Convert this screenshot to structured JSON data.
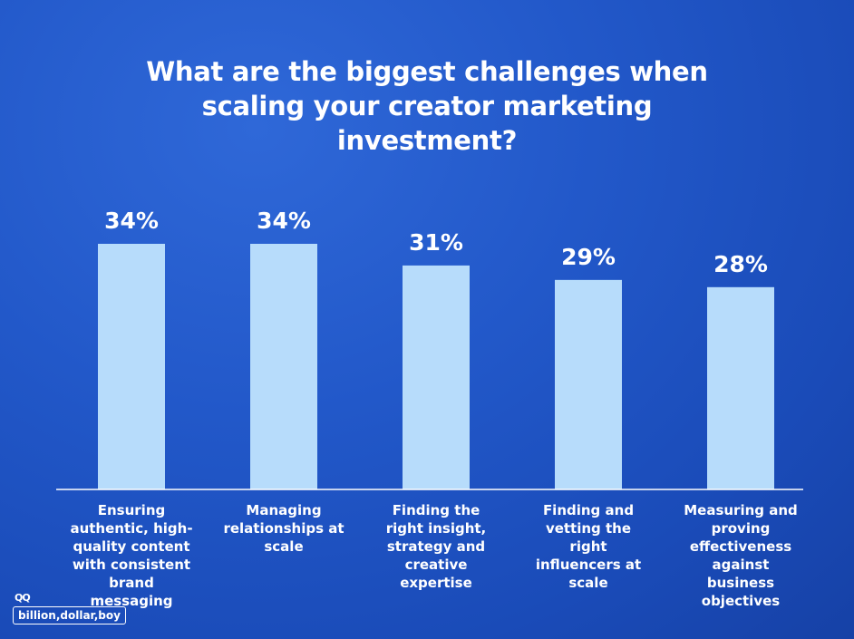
{
  "chart_data": {
    "type": "bar",
    "title": "What are the biggest challenges when scaling your creator marketing investment?",
    "categories": [
      "Ensuring authentic, high-quality content with consistent brand messaging",
      "Managing relationships at scale",
      "Finding the right insight, strategy and creative expertise",
      "Finding and vetting the right influencers at scale",
      "Measuring and proving effectiveness against business objectives"
    ],
    "values": [
      34,
      34,
      31,
      29,
      28
    ],
    "value_labels": [
      "34%",
      "34%",
      "31%",
      "29%",
      "28%"
    ],
    "color": "#b7dcfb"
  },
  "footer": {
    "logo": "billion,dollar,boy"
  }
}
